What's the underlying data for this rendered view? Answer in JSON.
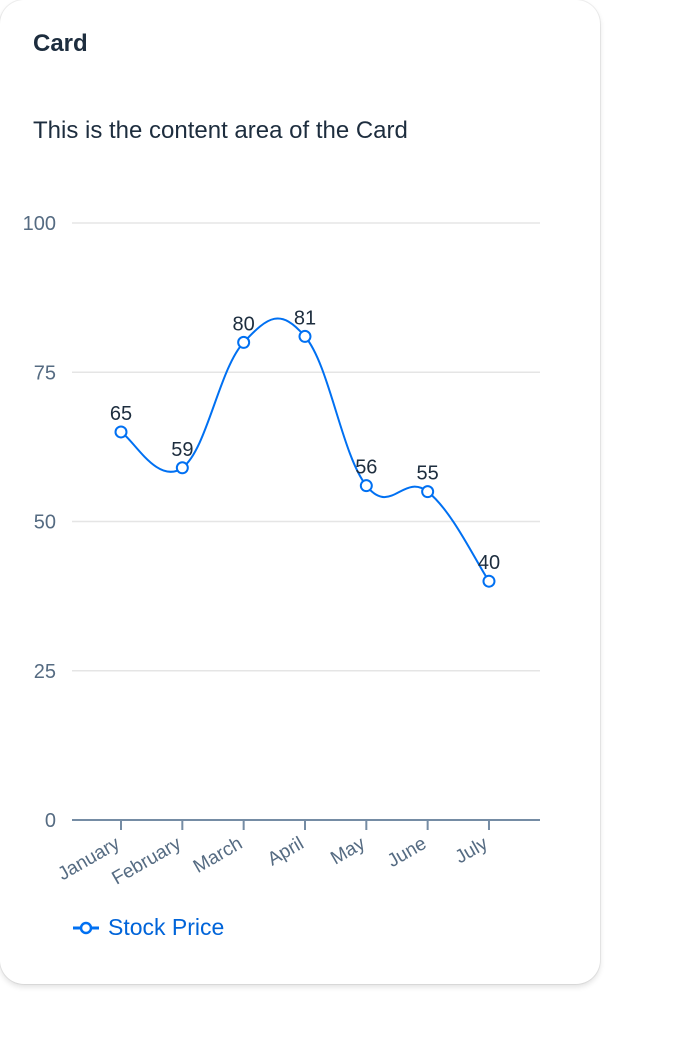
{
  "card": {
    "title": "Card",
    "content": "This is the content area of the Card"
  },
  "colors": {
    "series": "#0070f2",
    "grid": "#e5e5e5",
    "axis": "#758ca4",
    "text": "#1d2d3e",
    "muted": "#556b82",
    "legend_text": "#0064d9"
  },
  "chart_data": {
    "type": "line",
    "categories": [
      "January",
      "February",
      "March",
      "April",
      "May",
      "June",
      "July"
    ],
    "series": [
      {
        "name": "Stock Price",
        "values": [
          65,
          59,
          80,
          81,
          56,
          55,
          40
        ]
      }
    ],
    "yticks": [
      0,
      25,
      50,
      75,
      100
    ],
    "ylim": [
      0,
      100
    ],
    "grid": true,
    "legend_position": "bottom-left",
    "data_labels": true,
    "curve": "smooth"
  }
}
